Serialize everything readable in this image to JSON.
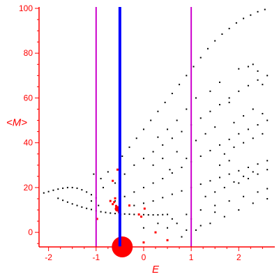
{
  "chart_data": {
    "type": "scatter",
    "xlabel": "E",
    "ylabel": "<M>",
    "xlim": [
      -2.2,
      2.7
    ],
    "ylim": [
      -6.5,
      100
    ],
    "x_ticks": [
      -2,
      -1,
      0,
      1,
      2
    ],
    "y_ticks": [
      0,
      20,
      40,
      60,
      80,
      100
    ],
    "grid": false,
    "colors": {
      "axis": "#ff0000",
      "points": "#000000",
      "highlight": "#ff0000",
      "line_primary": "#0000ff",
      "line_secondary": "#cc00cc"
    },
    "vertical_lines": [
      {
        "x": -1.0,
        "color": "#cc00cc"
      },
      {
        "x": -0.5,
        "color": "#0000ff"
      },
      {
        "x": 1.0,
        "color": "#cc00cc"
      }
    ],
    "series": [
      {
        "values": [
          [
            -2.1,
            17.6
          ],
          [
            -2.0,
            18.2
          ],
          [
            -1.9,
            18.8
          ],
          [
            -1.8,
            19.3
          ],
          [
            -1.7,
            19.7
          ],
          [
            -1.6,
            20.0
          ],
          [
            -1.5,
            20.0
          ],
          [
            -1.4,
            19.7
          ],
          [
            -1.3,
            19.0
          ],
          [
            -1.2,
            18.0
          ],
          [
            -1.1,
            16.8
          ],
          [
            -1.0,
            15.4
          ],
          [
            -1.8,
            15.2
          ],
          [
            -1.7,
            14.3
          ],
          [
            -1.6,
            13.5
          ],
          [
            -1.5,
            12.7
          ],
          [
            -1.4,
            12.0
          ],
          [
            -1.3,
            11.3
          ],
          [
            -1.2,
            10.7
          ],
          [
            -1.1,
            10.2
          ],
          [
            -1.0,
            9.6
          ],
          [
            -0.9,
            9.2
          ],
          [
            -0.8,
            8.9
          ],
          [
            -0.7,
            8.6
          ],
          [
            -0.6,
            8.4
          ],
          [
            -0.5,
            8.3
          ],
          [
            -0.4,
            8.2
          ],
          [
            -0.3,
            8.1
          ],
          [
            -0.2,
            8.0
          ],
          [
            -0.1,
            7.9
          ],
          [
            0.0,
            7.9
          ],
          [
            0.1,
            7.8
          ],
          [
            0.2,
            7.8
          ],
          [
            0.3,
            7.8
          ],
          [
            0.4,
            7.9
          ],
          [
            0.5,
            8.0
          ],
          [
            -0.45,
            34.0
          ],
          [
            -0.3,
            38.0
          ],
          [
            -0.15,
            42.0
          ],
          [
            0.0,
            46.0
          ],
          [
            0.15,
            50.0
          ],
          [
            0.3,
            54.0
          ],
          [
            0.45,
            58.0
          ],
          [
            0.6,
            62.0
          ],
          [
            0.75,
            66.0
          ],
          [
            0.9,
            70.0
          ],
          [
            1.05,
            74.0
          ],
          [
            1.2,
            78.0
          ],
          [
            1.35,
            82.0
          ],
          [
            1.5,
            85.5
          ],
          [
            1.65,
            88.5
          ],
          [
            1.8,
            91.0
          ],
          [
            1.95,
            93.5
          ],
          [
            2.1,
            95.5
          ],
          [
            2.25,
            97.0
          ],
          [
            2.4,
            98.5
          ],
          [
            2.55,
            99.5
          ],
          [
            -0.6,
            22.0
          ],
          [
            -0.4,
            26.0
          ],
          [
            -0.2,
            30.0
          ],
          [
            0.0,
            33.0
          ],
          [
            0.2,
            36.0
          ],
          [
            0.4,
            39.0
          ],
          [
            0.6,
            42.0
          ],
          [
            0.8,
            45.0
          ],
          [
            1.0,
            48.0
          ],
          [
            1.2,
            51.0
          ],
          [
            1.4,
            54.0
          ],
          [
            1.6,
            57.0
          ],
          [
            1.8,
            60.0
          ],
          [
            2.0,
            63.0
          ],
          [
            2.2,
            65.5
          ],
          [
            2.4,
            68.0
          ],
          [
            2.6,
            70.0
          ],
          [
            -0.6,
            14.0
          ],
          [
            -0.4,
            16.0
          ],
          [
            -0.2,
            18.0
          ],
          [
            0.0,
            20.0
          ],
          [
            0.2,
            22.0
          ],
          [
            0.4,
            24.0
          ],
          [
            0.6,
            26.5
          ],
          [
            0.8,
            29.0
          ],
          [
            1.0,
            31.5
          ],
          [
            1.2,
            34.0
          ],
          [
            1.4,
            36.5
          ],
          [
            1.6,
            39.0
          ],
          [
            1.8,
            41.5
          ],
          [
            2.0,
            44.0
          ],
          [
            2.2,
            46.0
          ],
          [
            2.4,
            48.0
          ],
          [
            2.6,
            50.0
          ],
          [
            -0.2,
            12.0
          ],
          [
            0.0,
            13.0
          ],
          [
            0.2,
            14.0
          ],
          [
            0.4,
            15.5
          ],
          [
            0.6,
            17.0
          ],
          [
            0.8,
            18.5
          ],
          [
            1.0,
            20.0
          ],
          [
            1.2,
            21.5
          ],
          [
            1.4,
            23.0
          ],
          [
            1.6,
            24.5
          ],
          [
            1.8,
            26.0
          ],
          [
            2.0,
            27.5
          ],
          [
            2.2,
            29.0
          ],
          [
            2.4,
            30.5
          ],
          [
            2.6,
            32.0
          ],
          [
            0.0,
            2.0
          ],
          [
            0.3,
            4.0
          ],
          [
            0.6,
            6.0
          ],
          [
            0.9,
            8.0
          ],
          [
            1.2,
            10.0
          ],
          [
            1.5,
            12.0
          ],
          [
            1.8,
            14.0
          ],
          [
            2.1,
            16.0
          ],
          [
            2.4,
            18.0
          ],
          [
            2.6,
            19.5
          ],
          [
            0.8,
            -2.0
          ],
          [
            1.1,
            1.0
          ],
          [
            1.4,
            4.0
          ],
          [
            1.7,
            7.0
          ],
          [
            2.0,
            10.0
          ],
          [
            2.3,
            13.0
          ],
          [
            2.6,
            15.0
          ],
          [
            -1.05,
            26.0
          ],
          [
            -0.9,
            24.0
          ],
          [
            -0.75,
            27.0
          ],
          [
            -0.85,
            20.0
          ],
          [
            -1.1,
            14.0
          ],
          [
            -0.95,
            12.0
          ],
          [
            0.3,
            42.5
          ],
          [
            0.55,
            28.0
          ],
          [
            0.7,
            36.0
          ],
          [
            0.9,
            33.0
          ],
          [
            1.1,
            41.0
          ],
          [
            1.3,
            44.0
          ],
          [
            1.5,
            47.0
          ],
          [
            1.7,
            35.0
          ],
          [
            1.9,
            38.0
          ],
          [
            2.1,
            40.0
          ],
          [
            2.3,
            42.0
          ],
          [
            2.5,
            44.0
          ],
          [
            1.4,
            63.0
          ],
          [
            1.6,
            67.0
          ],
          [
            1.8,
            58.0
          ],
          [
            2.0,
            73.0
          ],
          [
            2.2,
            74.0
          ],
          [
            2.3,
            75.0
          ],
          [
            2.4,
            72.0
          ],
          [
            2.5,
            66.0
          ],
          [
            2.1,
            52.0
          ],
          [
            2.3,
            55.0
          ],
          [
            2.5,
            53.0
          ],
          [
            1.9,
            49.0
          ],
          [
            1.1,
            60.0
          ],
          [
            0.9,
            55.0
          ],
          [
            0.7,
            50.0
          ],
          [
            0.5,
            46.0
          ],
          [
            0.2,
            30.0
          ],
          [
            0.4,
            33.0
          ],
          [
            1.6,
            30.0
          ],
          [
            1.8,
            32.0
          ],
          [
            2.0,
            22.0
          ],
          [
            2.2,
            24.0
          ],
          [
            2.4,
            26.0
          ],
          [
            2.6,
            28.0
          ],
          [
            1.3,
            16.0
          ],
          [
            1.5,
            18.0
          ],
          [
            1.7,
            20.0
          ],
          [
            1.9,
            22.5
          ],
          [
            2.1,
            25.0
          ],
          [
            2.3,
            27.0
          ],
          [
            0.5,
            2.0
          ],
          [
            0.7,
            4.0
          ],
          [
            0.9,
            1.0
          ],
          [
            1.0,
            6.0
          ],
          [
            1.2,
            3.0
          ],
          [
            1.5,
            9.0
          ]
        ]
      },
      {
        "values": [
          [
            -0.62,
            13.5
          ],
          [
            -0.58,
            11.8
          ],
          [
            -0.55,
            10.2
          ],
          [
            -0.52,
            9.0
          ],
          [
            -0.49,
            8.0
          ],
          [
            -0.65,
            12.6
          ],
          [
            -0.7,
            14.0
          ],
          [
            -0.6,
            15.2
          ],
          [
            -0.1,
            8.0
          ],
          [
            -0.05,
            7.0
          ],
          [
            0.02,
            10.6
          ],
          [
            -0.55,
            28.0
          ],
          [
            -0.65,
            23.0
          ],
          [
            -0.98,
            6.0
          ],
          [
            0.25,
            0.0
          ],
          [
            0.5,
            -3.5
          ],
          [
            0.0,
            -4.5
          ],
          [
            -0.3,
            12.0
          ]
        ]
      }
    ],
    "blobs": [
      {
        "x": -0.45,
        "y": -6.5,
        "label": "large-red-semicircle"
      },
      {
        "x": -0.55,
        "y": 10.5,
        "label": "red-cluster"
      }
    ]
  }
}
